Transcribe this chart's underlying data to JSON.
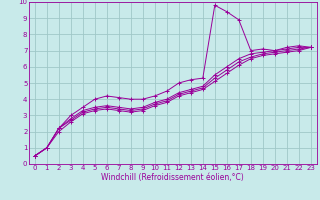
{
  "title": "",
  "xlabel": "Windchill (Refroidissement éolien,°C)",
  "ylabel": "",
  "bg_color": "#c8eaea",
  "grid_color": "#a0c8c8",
  "line_color": "#990099",
  "xlim": [
    -0.5,
    23.5
  ],
  "ylim": [
    0,
    10
  ],
  "xticks": [
    0,
    1,
    2,
    3,
    4,
    5,
    6,
    7,
    8,
    9,
    10,
    11,
    12,
    13,
    14,
    15,
    16,
    17,
    18,
    19,
    20,
    21,
    22,
    23
  ],
  "yticks": [
    0,
    1,
    2,
    3,
    4,
    5,
    6,
    7,
    8,
    9,
    10
  ],
  "line1_x": [
    0,
    1,
    2,
    3,
    4,
    5,
    6,
    7,
    8,
    9,
    10,
    11,
    12,
    13,
    14,
    15,
    16,
    17,
    18,
    19,
    20,
    21,
    22,
    23
  ],
  "line1_y": [
    0.5,
    1.0,
    2.2,
    3.0,
    3.5,
    4.0,
    4.2,
    4.1,
    4.0,
    4.0,
    4.2,
    4.5,
    5.0,
    5.2,
    5.3,
    9.8,
    9.4,
    8.9,
    7.0,
    7.1,
    7.0,
    7.2,
    7.3,
    7.2
  ],
  "line2_x": [
    0,
    1,
    2,
    3,
    4,
    5,
    6,
    7,
    8,
    9,
    10,
    11,
    12,
    13,
    14,
    15,
    16,
    17,
    18,
    19,
    20,
    21,
    22,
    23
  ],
  "line2_y": [
    0.5,
    1.0,
    2.2,
    2.8,
    3.3,
    3.5,
    3.6,
    3.5,
    3.4,
    3.5,
    3.8,
    4.0,
    4.4,
    4.6,
    4.8,
    5.5,
    6.0,
    6.5,
    6.8,
    6.9,
    7.0,
    7.1,
    7.2,
    7.2
  ],
  "line3_x": [
    0,
    1,
    2,
    3,
    4,
    5,
    6,
    7,
    8,
    9,
    10,
    11,
    12,
    13,
    14,
    15,
    16,
    17,
    18,
    19,
    20,
    21,
    22,
    23
  ],
  "line3_y": [
    0.5,
    1.0,
    2.2,
    2.7,
    3.2,
    3.4,
    3.5,
    3.4,
    3.3,
    3.4,
    3.7,
    3.9,
    4.3,
    4.5,
    4.7,
    5.3,
    5.8,
    6.3,
    6.6,
    6.8,
    6.9,
    7.0,
    7.1,
    7.2
  ],
  "line4_x": [
    0,
    1,
    2,
    3,
    4,
    5,
    6,
    7,
    8,
    9,
    10,
    11,
    12,
    13,
    14,
    15,
    16,
    17,
    18,
    19,
    20,
    21,
    22,
    23
  ],
  "line4_y": [
    0.5,
    1.0,
    2.0,
    2.6,
    3.1,
    3.3,
    3.4,
    3.3,
    3.2,
    3.3,
    3.6,
    3.8,
    4.2,
    4.4,
    4.6,
    5.1,
    5.6,
    6.1,
    6.5,
    6.7,
    6.8,
    6.9,
    7.0,
    7.2
  ],
  "label_fontsize": 5.0,
  "xlabel_fontsize": 5.5
}
